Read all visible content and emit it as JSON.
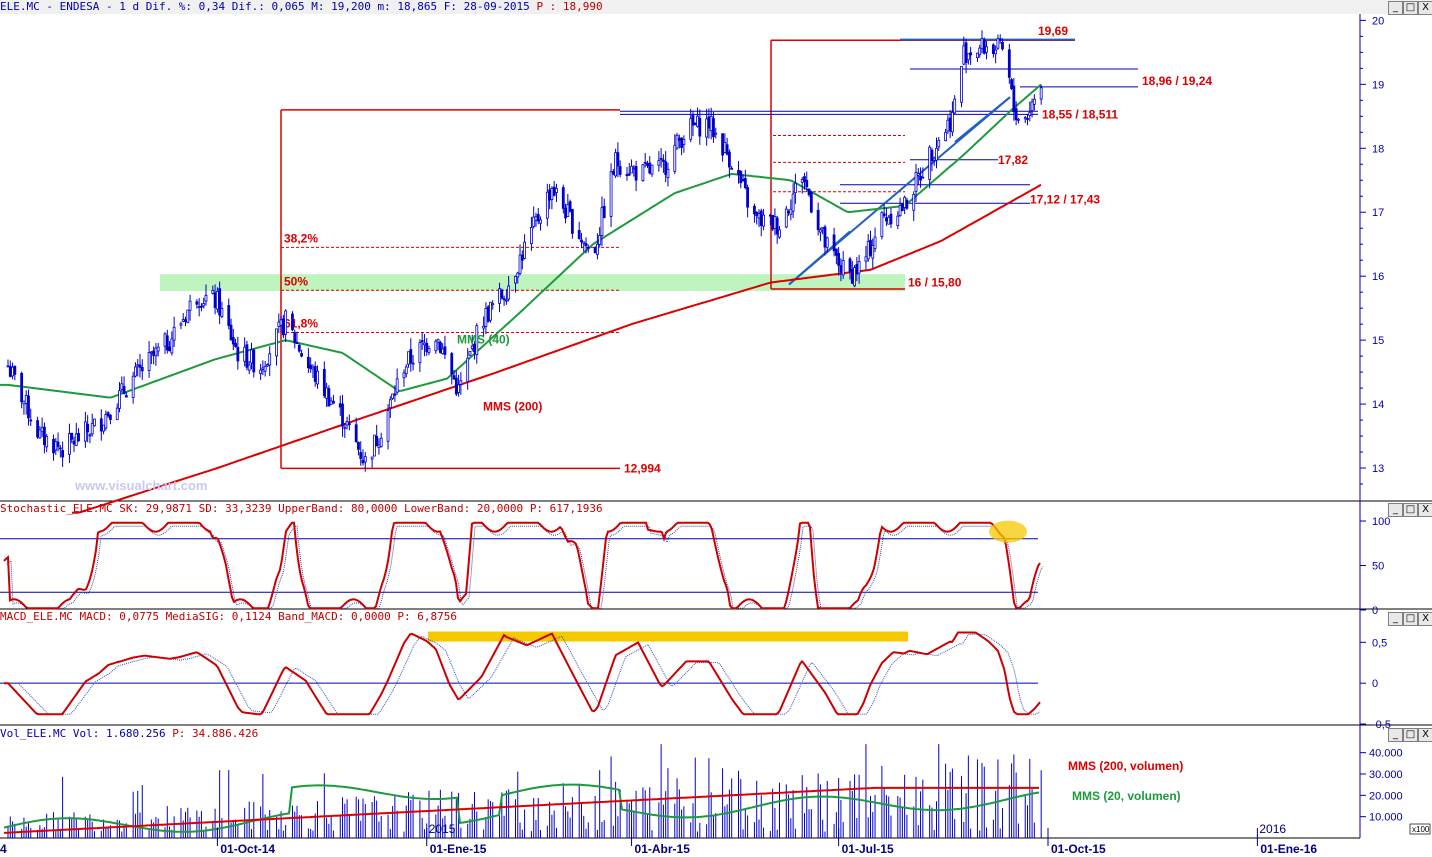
{
  "app": {
    "symbol_line": "ELE.MC - ENDESA - 1 d Dif. %: 0,34 Dif.: 0,065 M: 19,200 m: 18,865 F: 28-09-2015 ",
    "symbol_price": "P : 18,990",
    "watermark": "www.visualchart.com"
  },
  "window_buttons": [
    "_",
    "□",
    "X"
  ],
  "x_axis": {
    "left_edge_label": "4",
    "labels": [
      "01-Oct-14",
      "01-Ene-15",
      "01-Abr-15",
      "01-Jul-15",
      "01-Oct-15",
      "01-Ene-16"
    ],
    "year_labels": [
      "2015",
      "2016"
    ]
  },
  "colors": {
    "price_candles": "#0000cc",
    "mms40": "#1e9a3c",
    "mms200": "#dd0000",
    "annotation_red": "#dd0000",
    "trend_blue": "#2060c0",
    "support_zone": "#a8f0a8",
    "highlight_yellow": "#f5c800",
    "axis_blue": "#0000b0"
  },
  "chart_data": [
    {
      "type": "candlestick",
      "panel": "price",
      "y_ticks": [
        "20",
        "19",
        "18",
        "17",
        "16",
        "15",
        "14",
        "13"
      ],
      "ylim": [
        12.5,
        20.1
      ],
      "series": [
        {
          "name": "MMS (40)",
          "kind": "sma40"
        },
        {
          "name": "MMS (200)",
          "kind": "sma200"
        }
      ],
      "close_path": [
        [
          "2014-07-01",
          14.6
        ],
        [
          "2014-07-15",
          13.5
        ],
        [
          "2014-07-25",
          13.3
        ],
        [
          "2014-08-10",
          13.7
        ],
        [
          "2014-08-25",
          14.4
        ],
        [
          "2014-09-10",
          15.0
        ],
        [
          "2014-09-22",
          15.7
        ],
        [
          "2014-10-01",
          15.6
        ],
        [
          "2014-10-10",
          14.8
        ],
        [
          "2014-10-20",
          14.6
        ],
        [
          "2014-10-31",
          15.3
        ],
        [
          "2014-11-10",
          14.6
        ],
        [
          "2014-11-25",
          13.8
        ],
        [
          "2014-12-05",
          13.1
        ],
        [
          "2014-12-12",
          13.6
        ],
        [
          "2014-12-22",
          14.6
        ],
        [
          "2015-01-05",
          15.1
        ],
        [
          "2015-01-15",
          14.2
        ],
        [
          "2015-01-25",
          15.3
        ],
        [
          "2015-02-05",
          15.8
        ],
        [
          "2015-02-15",
          16.6
        ],
        [
          "2015-02-25",
          17.4
        ],
        [
          "2015-03-05",
          16.9
        ],
        [
          "2015-03-15",
          16.3
        ],
        [
          "2015-03-25",
          17.8
        ],
        [
          "2015-04-05",
          17.6
        ],
        [
          "2015-04-15",
          17.7
        ],
        [
          "2015-04-25",
          18.3
        ],
        [
          "2015-05-05",
          18.4
        ],
        [
          "2015-05-15",
          17.8
        ],
        [
          "2015-05-25",
          16.9
        ],
        [
          "2015-06-05",
          16.8
        ],
        [
          "2015-06-15",
          17.6
        ],
        [
          "2015-06-25",
          16.5
        ],
        [
          "2015-07-05",
          16.0
        ],
        [
          "2015-07-12",
          16.2
        ],
        [
          "2015-07-20",
          16.9
        ],
        [
          "2015-07-30",
          17.1
        ],
        [
          "2015-08-10",
          17.9
        ],
        [
          "2015-08-20",
          18.5
        ],
        [
          "2015-08-25",
          19.5
        ],
        [
          "2015-09-05",
          19.6
        ],
        [
          "2015-09-12",
          19.5
        ],
        [
          "2015-09-16",
          18.6
        ],
        [
          "2015-09-20",
          18.4
        ],
        [
          "2015-09-28",
          18.99
        ]
      ],
      "sma40_path": [
        [
          "2014-07-01",
          14.3
        ],
        [
          "2014-08-15",
          14.1
        ],
        [
          "2014-09-30",
          14.7
        ],
        [
          "2014-10-31",
          15.0
        ],
        [
          "2014-11-25",
          14.8
        ],
        [
          "2014-12-20",
          14.2
        ],
        [
          "2015-01-10",
          14.4
        ],
        [
          "2015-02-10",
          15.4
        ],
        [
          "2015-03-15",
          16.5
        ],
        [
          "2015-04-20",
          17.3
        ],
        [
          "2015-05-15",
          17.6
        ],
        [
          "2015-06-10",
          17.5
        ],
        [
          "2015-07-05",
          17.0
        ],
        [
          "2015-07-30",
          17.1
        ],
        [
          "2015-08-25",
          17.9
        ],
        [
          "2015-09-15",
          18.6
        ],
        [
          "2015-09-28",
          19.0
        ]
      ],
      "sma200_path": [
        [
          "2014-08-01",
          12.3
        ],
        [
          "2014-10-01",
          13.0
        ],
        [
          "2014-12-01",
          13.75
        ],
        [
          "2015-02-01",
          14.5
        ],
        [
          "2015-04-01",
          15.25
        ],
        [
          "2015-06-01",
          15.9
        ],
        [
          "2015-07-15",
          16.1
        ],
        [
          "2015-08-15",
          16.55
        ],
        [
          "2015-09-28",
          17.43
        ]
      ],
      "annotations": {
        "levels": [
          {
            "label": "19,69",
            "value": 19.69
          },
          {
            "label": "18,96 / 19,24",
            "value": 19.1
          },
          {
            "label": "18,55 / 18,511",
            "value": 18.53
          },
          {
            "label": "17,82",
            "value": 17.82
          },
          {
            "label": "17,12 / 17,43",
            "value": 17.2
          },
          {
            "label": "16 / 15,80",
            "value": 15.8
          },
          {
            "label": "12,994",
            "value": 12.994
          }
        ],
        "fibonacci": [
          {
            "label": "38,2%",
            "value": 16.45
          },
          {
            "label": "50%",
            "value": 15.78
          },
          {
            "label": "61,8%",
            "value": 15.12
          }
        ],
        "support_zone": [
          15.8,
          16.0
        ],
        "ma_labels": [
          "MMS (40)",
          "MMS (200)"
        ]
      }
    },
    {
      "type": "line",
      "panel": "stochastic",
      "header": "Stochastic_ELE.MC SK: 29,9871 SD: 33,3239 UpperBand: 80,0000 LowerBand: 20,0000 ",
      "header_price": "P: 617,1936",
      "y_ticks": [
        "100",
        "50",
        "0"
      ],
      "ylim": [
        0,
        100
      ],
      "bands": [
        80,
        20
      ]
    },
    {
      "type": "line",
      "panel": "macd",
      "header": "MACD_ELE.MC MACD: 0,0775 MediaSIG: 0,1124 Band_MACD: 0,0000 ",
      "header_price": "P: 6,8756",
      "y_ticks": [
        "0,5",
        "0",
        "-0,5"
      ],
      "ylim": [
        -0.5,
        0.7
      ],
      "series": [
        {
          "name": "MACD"
        },
        {
          "name": "MediaSIG"
        }
      ]
    },
    {
      "type": "bar",
      "panel": "volume",
      "header": "Vol_ELE.MC Vol: 1.680.256 ",
      "header_price": "P: 34.886.426",
      "y_ticks": [
        "40.000",
        "30.000",
        "20.000",
        "10.000"
      ],
      "unit": "x100",
      "ylim": [
        0,
        45000
      ],
      "series": [
        {
          "name": "MMS (200, volumen)"
        },
        {
          "name": "MMS (20, volumen)"
        }
      ]
    }
  ]
}
